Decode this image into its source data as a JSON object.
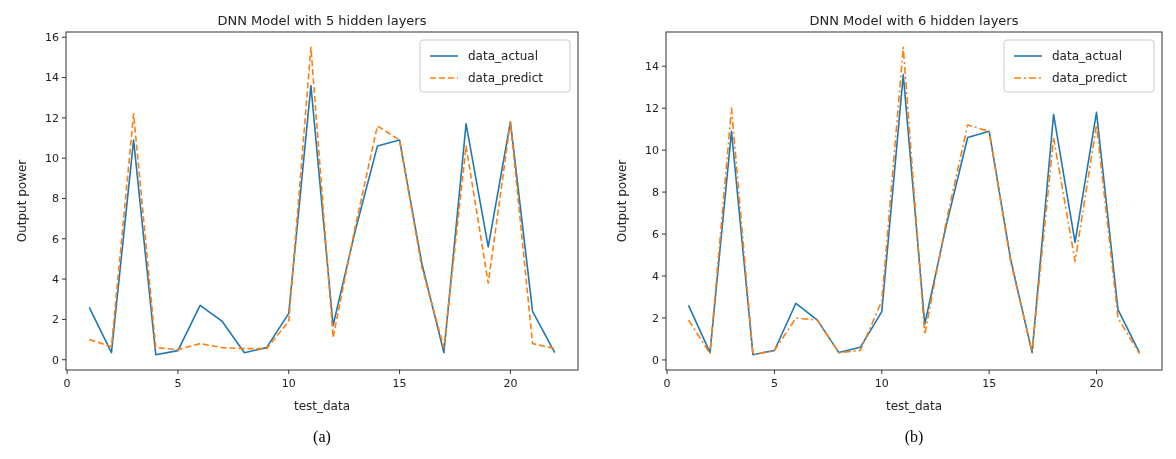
{
  "chart_data": [
    {
      "type": "line",
      "title": "DNN Model with 5 hidden layers",
      "xlabel": "test_data",
      "ylabel": "Output power",
      "x": [
        1,
        2,
        3,
        4,
        5,
        6,
        7,
        8,
        9,
        10,
        11,
        12,
        13,
        14,
        15,
        16,
        17,
        18,
        19,
        20,
        21,
        22
      ],
      "series": [
        {
          "name": "data_actual",
          "color": "#1f77b4",
          "line_style": "solid",
          "values": [
            2.6,
            0.35,
            10.9,
            0.25,
            0.45,
            2.7,
            1.9,
            0.35,
            0.6,
            2.3,
            13.6,
            1.7,
            6.4,
            10.6,
            10.9,
            4.8,
            0.35,
            11.7,
            5.6,
            11.8,
            2.4,
            0.35
          ]
        },
        {
          "name": "data_predict",
          "color": "#ff7f0e",
          "line_style": "dashed",
          "values": [
            1.0,
            0.65,
            12.2,
            0.6,
            0.5,
            0.8,
            0.6,
            0.55,
            0.55,
            1.9,
            15.5,
            1.1,
            6.6,
            11.6,
            10.9,
            4.6,
            0.6,
            10.6,
            3.8,
            11.8,
            0.8,
            0.55
          ]
        }
      ],
      "xlim": [
        -0.05,
        23.05
      ],
      "xticks": [
        0,
        5,
        10,
        15,
        20
      ],
      "ylim": [
        -0.51,
        16.26
      ],
      "yticks": [
        0,
        2,
        4,
        6,
        8,
        10,
        12,
        14,
        16
      ],
      "legend": "top right",
      "annotations": [
        "(a)"
      ]
    },
    {
      "type": "line",
      "title": "DNN Model with 6 hidden layers",
      "xlabel": "test_data",
      "ylabel": "Output power",
      "x": [
        1,
        2,
        3,
        4,
        5,
        6,
        7,
        8,
        9,
        10,
        11,
        12,
        13,
        14,
        15,
        16,
        17,
        18,
        19,
        20,
        21,
        22
      ],
      "series": [
        {
          "name": "data_actual",
          "color": "#1f77b4",
          "line_style": "solid",
          "values": [
            2.6,
            0.35,
            10.9,
            0.25,
            0.45,
            2.7,
            1.9,
            0.35,
            0.6,
            2.3,
            13.6,
            1.7,
            6.4,
            10.6,
            10.9,
            4.8,
            0.35,
            11.7,
            5.6,
            11.8,
            2.4,
            0.35
          ]
        },
        {
          "name": "data_predict",
          "color": "#ff7f0e",
          "line_style": "dashdot",
          "values": [
            1.9,
            0.3,
            12.0,
            0.25,
            0.45,
            2.0,
            1.9,
            0.35,
            0.45,
            2.8,
            14.9,
            1.2,
            6.6,
            11.2,
            10.9,
            4.7,
            0.4,
            10.6,
            4.7,
            11.2,
            2.0,
            0.3
          ]
        }
      ],
      "xlim": [
        -0.05,
        23.05
      ],
      "xticks": [
        0,
        5,
        10,
        15,
        20
      ],
      "ylim": [
        -0.48,
        15.63
      ],
      "yticks": [
        0,
        2,
        4,
        6,
        8,
        10,
        12,
        14
      ],
      "legend": "top right",
      "annotations": [
        "(b)"
      ]
    }
  ]
}
